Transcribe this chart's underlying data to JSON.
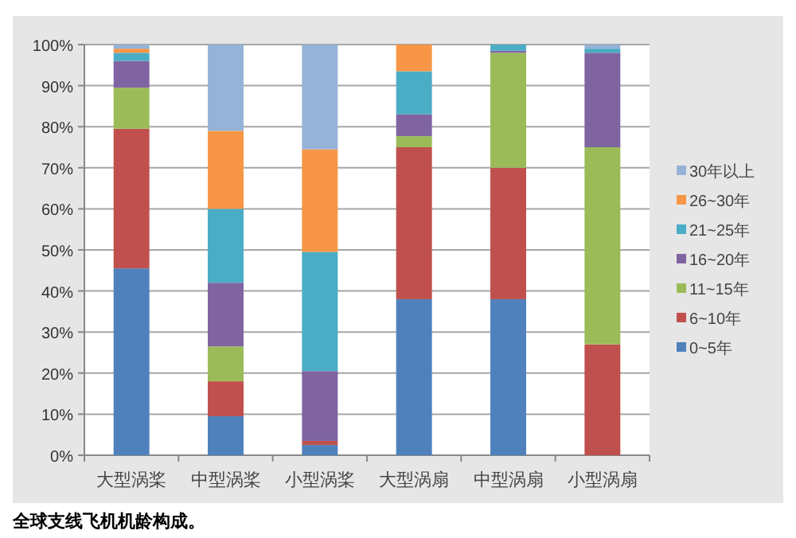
{
  "chart_data": {
    "type": "bar",
    "stacked": true,
    "categories": [
      "大型涡桨",
      "中型涡桨",
      "小型涡桨",
      "大型涡扇",
      "中型涡扇",
      "小型涡扇"
    ],
    "series": [
      {
        "name": "0~5年",
        "color": "#4f81bd",
        "values": [
          45.5,
          9.5,
          2.5,
          38,
          38,
          0
        ]
      },
      {
        "name": "6~10年",
        "color": "#c0504d",
        "values": [
          34,
          8.5,
          1,
          37,
          32,
          27
        ]
      },
      {
        "name": "11~15年",
        "color": "#9bbb59",
        "values": [
          10,
          8.5,
          0,
          2.7,
          28,
          48
        ]
      },
      {
        "name": "16~20年",
        "color": "#8064a2",
        "values": [
          6.5,
          15.5,
          17,
          5.3,
          0.5,
          23
        ]
      },
      {
        "name": "21~25年",
        "color": "#4bacc6",
        "values": [
          2,
          18,
          29,
          10.5,
          1.5,
          1
        ]
      },
      {
        "name": "26~30年",
        "color": "#f79646",
        "values": [
          1,
          19,
          25,
          6.5,
          0,
          0
        ]
      },
      {
        "name": "30年以上",
        "color": "#95b3d7",
        "values": [
          1,
          21,
          25.5,
          0,
          0,
          1
        ]
      }
    ],
    "ylim": [
      0,
      100
    ],
    "yticks": [
      {
        "value": 0,
        "label": "0%"
      },
      {
        "value": 10,
        "label": "10%"
      },
      {
        "value": 20,
        "label": "20%"
      },
      {
        "value": 30,
        "label": "30%"
      },
      {
        "value": 40,
        "label": "40%"
      },
      {
        "value": 50,
        "label": "50%"
      },
      {
        "value": 60,
        "label": "60%"
      },
      {
        "value": 70,
        "label": "70%"
      },
      {
        "value": 80,
        "label": "80%"
      },
      {
        "value": 90,
        "label": "90%"
      },
      {
        "value": 100,
        "label": "100%"
      }
    ],
    "grid": "y",
    "legend": "right",
    "annotations": [
      "全球支线飞机机龄构成。"
    ]
  }
}
